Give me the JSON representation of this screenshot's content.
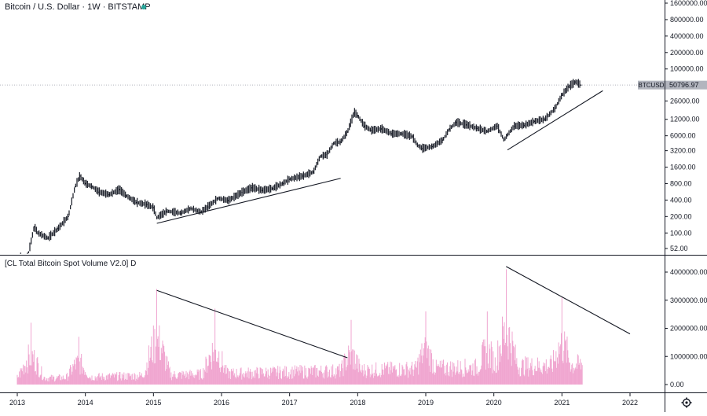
{
  "header": {
    "title": "Bitcoin / U.S. Dollar · 1W · BITSTAMP",
    "status_color": "#26a69a"
  },
  "price_tag": {
    "symbol": "BTCUSD",
    "value": "50796.97"
  },
  "volume_pane": {
    "title": "[CL Total Bitcoin Spot Volume V2.0] D",
    "bar_color": "#f0a6d0"
  },
  "chart_data": [
    {
      "type": "line",
      "title": "Bitcoin / U.S. Dollar · 1W · BITSTAMP",
      "yscale": "log",
      "y_ticks": [
        "1600000.00",
        "800000.00",
        "400000.00",
        "200000.00",
        "100000.00",
        "50796.97",
        "26000.00",
        "12000.00",
        "6000.00",
        "3200.00",
        "1600.00",
        "800.00",
        "400.00",
        "200.00",
        "100.00",
        "52.00"
      ],
      "x_ticks": [
        "2013",
        "2014",
        "2015",
        "2016",
        "2017",
        "2018",
        "2019",
        "2020",
        "2021",
        "2022"
      ],
      "ylim": [
        40,
        1600000
      ],
      "series": [
        {
          "color": "#131722",
          "x": [
            2013.05,
            2013.15,
            2013.25,
            2013.3,
            2013.45,
            2013.6,
            2013.75,
            2013.85,
            2013.92,
            2014.0,
            2014.1,
            2014.2,
            2014.35,
            2014.5,
            2014.6,
            2014.75,
            2014.9,
            2015.0,
            2015.05,
            2015.2,
            2015.4,
            2015.55,
            2015.7,
            2015.8,
            2015.95,
            2016.1,
            2016.3,
            2016.45,
            2016.6,
            2016.75,
            2016.9,
            2017.0,
            2017.2,
            2017.35,
            2017.45,
            2017.55,
            2017.65,
            2017.75,
            2017.85,
            2017.95,
            2018.0,
            2018.1,
            2018.2,
            2018.35,
            2018.5,
            2018.65,
            2018.8,
            2018.88,
            2018.95,
            2019.1,
            2019.25,
            2019.35,
            2019.45,
            2019.6,
            2019.75,
            2019.9,
            2020.05,
            2020.15,
            2020.2,
            2020.3,
            2020.45,
            2020.6,
            2020.75,
            2020.9,
            2021.0,
            2021.1,
            2021.2,
            2021.28
          ],
          "y": [
            14,
            35,
            130,
            100,
            80,
            120,
            200,
            700,
            1100,
            800,
            700,
            560,
            500,
            620,
            480,
            360,
            330,
            290,
            190,
            250,
            230,
            280,
            240,
            300,
            430,
            390,
            550,
            670,
            600,
            650,
            800,
            960,
            1100,
            1300,
            2500,
            2700,
            4400,
            4600,
            7000,
            16000,
            14000,
            9000,
            7500,
            8000,
            6500,
            6500,
            5800,
            4000,
            3500,
            3800,
            5000,
            8000,
            10500,
            9500,
            8200,
            7200,
            9000,
            5000,
            6200,
            9000,
            9300,
            11000,
            12000,
            19000,
            33000,
            47000,
            58000,
            50797
          ]
        }
      ],
      "trendlines": [
        {
          "x": [
            2015.05,
            2017.75
          ],
          "y": [
            150,
            1000
          ]
        },
        {
          "x": [
            2020.2,
            2021.6
          ],
          "y": [
            3300,
            40000
          ]
        }
      ]
    },
    {
      "type": "bar",
      "title": "[CL Total Bitcoin Spot Volume V2.0] D",
      "y_ticks": [
        "4000000.00",
        "3000000.00",
        "2000000.00",
        "1000000.00",
        "0.00"
      ],
      "ylim": [
        -50000,
        4400000
      ],
      "volume_peaks": [
        {
          "x": 2013.2,
          "value": 2200000
        },
        {
          "x": 2013.9,
          "value": 1700000
        },
        {
          "x": 2015.05,
          "value": 3400000
        },
        {
          "x": 2015.9,
          "value": 2700000
        },
        {
          "x": 2017.9,
          "value": 2300000
        },
        {
          "x": 2019.0,
          "value": 2600000
        },
        {
          "x": 2019.9,
          "value": 2600000
        },
        {
          "x": 2020.18,
          "value": 4100000
        },
        {
          "x": 2021.0,
          "value": 3100000
        }
      ],
      "trendlines": [
        {
          "x": [
            2015.05,
            2017.85
          ],
          "y": [
            3350000,
            950000
          ]
        },
        {
          "x": [
            2020.18,
            2022.0
          ],
          "y": [
            4200000,
            1800000
          ]
        }
      ]
    }
  ]
}
